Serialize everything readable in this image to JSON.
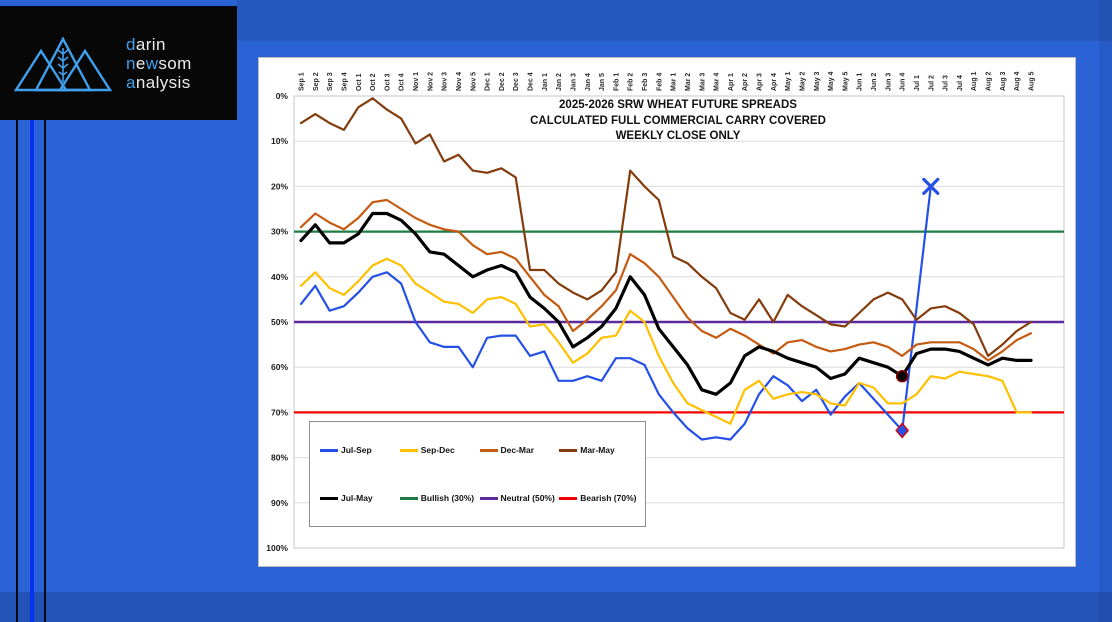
{
  "brand": {
    "l1a": "d",
    "l1b": "arin",
    "l2a": "n",
    "l2b": "e",
    "l2c": "w",
    "l2d": "som",
    "l3a": "a",
    "l3b": "nalysis",
    "accent_color": "#41A0EE"
  },
  "page_colors": {
    "background_blue": "#2B62D5",
    "stripe_bright_blue": "#0533F0",
    "stripe_black": "#06080c",
    "logo_background": "#070707",
    "card_background": "#ffffff"
  },
  "chart_data": {
    "type": "line",
    "title_lines": [
      "2025-2026 SRW WHEAT FUTURE SPREADS",
      "CALCULATED FULL COMMERCIAL CARRY COVERED",
      "WEEKLY CLOSE ONLY"
    ],
    "y_axis": {
      "min": 0,
      "max": 100,
      "inverted": true,
      "tick_step": 10,
      "ticks": [
        "0%",
        "10%",
        "20%",
        "30%",
        "40%",
        "50%",
        "60%",
        "70%",
        "80%",
        "90%",
        "100%"
      ]
    },
    "grid": true,
    "legend_position": "inside-bottom-left",
    "categories": [
      "Sep 1",
      "Sep 2",
      "Sep 3",
      "Sep 4",
      "Oct 1",
      "Oct 2",
      "Oct 3",
      "Oct 4",
      "Nov 1",
      "Nov 2",
      "Nov 3",
      "Nov 4",
      "Nov 5",
      "Dec 1",
      "Dec 2",
      "Dec 3",
      "Dec 4",
      "Jan 1",
      "Jan 2",
      "Jan 3",
      "Jan 4",
      "Jan 5",
      "Feb 1",
      "Feb 2",
      "Feb 3",
      "Feb 4",
      "Mar 1",
      "Mar 2",
      "Mar 3",
      "Mar 4",
      "Apr 1",
      "Apr 2",
      "Apr 3",
      "Apr 4",
      "May 1",
      "May 2",
      "May 3",
      "May 4",
      "May 5",
      "Jun 1",
      "Jun 2",
      "Jun 3",
      "Jun 4",
      "Jul 1",
      "Jul 2",
      "Jul 3",
      "Jul 4",
      "Aug 1",
      "Aug 2",
      "Aug 3",
      "Aug 4",
      "Aug 5"
    ],
    "unit": "percent",
    "series": [
      {
        "name": "Jul-Sep",
        "color": "#2450E8",
        "width": 2.2,
        "values": [
          46,
          42,
          47.5,
          46.5,
          43.5,
          40,
          39,
          41.5,
          50,
          54.5,
          55.5,
          55.5,
          60,
          53.5,
          53,
          53,
          57.5,
          56.5,
          63,
          63,
          62,
          63,
          58,
          58,
          59.5,
          66,
          70,
          73.5,
          76,
          75.5,
          76,
          72.5,
          66,
          62,
          64,
          67.5,
          65,
          70.5,
          66.5,
          63.5,
          67,
          70.5,
          74,
          47,
          20,
          null,
          null,
          null,
          null,
          null,
          null,
          null
        ]
      },
      {
        "name": "Sep-Dec",
        "color": "#FFC000",
        "width": 2.2,
        "values": [
          42,
          39,
          42.5,
          44,
          41,
          37.5,
          36,
          37.5,
          41.5,
          43.5,
          45.5,
          46,
          48,
          45,
          44.5,
          46,
          51,
          50.5,
          54.5,
          59,
          57,
          53.5,
          53,
          47.5,
          50,
          57.5,
          63.5,
          68,
          69.5,
          71,
          72.5,
          65,
          63,
          67,
          66,
          65.5,
          66,
          68,
          68.5,
          63.5,
          64.5,
          68,
          68,
          66,
          62,
          62.5,
          61,
          61.5,
          62,
          63,
          70,
          70
        ]
      },
      {
        "name": "Dec-Mar",
        "color": "#C55A11",
        "width": 2.2,
        "values": [
          29,
          26,
          28,
          29.5,
          27,
          23.5,
          23,
          25,
          27,
          28.5,
          29.5,
          30,
          33,
          35,
          34.5,
          36,
          40,
          44,
          46.5,
          52,
          49.5,
          46.5,
          43,
          35,
          37,
          40,
          44.5,
          49,
          52,
          53.5,
          51.5,
          53,
          55,
          57,
          54.5,
          54,
          55.5,
          56.5,
          56,
          55,
          54.5,
          55.5,
          57.5,
          55,
          54.5,
          54.5,
          54.5,
          56,
          58.5,
          56.5,
          54,
          52.5
        ]
      },
      {
        "name": "Mar-May",
        "color": "#843C0C",
        "width": 2.2,
        "values": [
          6,
          4,
          6,
          7.5,
          2.5,
          0.5,
          3,
          5,
          10.5,
          8.5,
          14.5,
          13,
          16.5,
          17,
          16,
          18,
          38.5,
          38.5,
          41.5,
          43.5,
          45,
          43,
          39,
          16.5,
          20,
          23,
          35.5,
          37,
          40,
          42.5,
          48,
          49.5,
          45,
          50,
          44,
          46.5,
          48.5,
          50.5,
          51,
          48,
          45,
          43.5,
          45,
          49.5,
          47,
          46.5,
          48,
          50.5,
          57.5,
          55,
          52,
          50
        ]
      },
      {
        "name": "Jul-May",
        "color": "#000000",
        "width": 3.2,
        "values": [
          32,
          28.5,
          32.5,
          32.5,
          30.5,
          26,
          26,
          27.5,
          30.5,
          34.5,
          35,
          37.5,
          40,
          38.5,
          37.5,
          39,
          44.5,
          47,
          50,
          55.5,
          53.5,
          51,
          47,
          40,
          44,
          51.5,
          55.5,
          59.5,
          65,
          66,
          63.5,
          57.5,
          55.5,
          56.5,
          58,
          59,
          60,
          62.5,
          61.5,
          58,
          59,
          60,
          62,
          57,
          56,
          56,
          56.5,
          58,
          59.5,
          58,
          58.5,
          58.5
        ]
      }
    ],
    "reference_lines": [
      {
        "name": "Bullish (30%)",
        "value": 30,
        "color": "#1E7C45",
        "width": 2.2
      },
      {
        "name": "Neutral (50%)",
        "value": 50,
        "color": "#5B2B9E",
        "width": 2.6
      },
      {
        "name": "Bearish (70%)",
        "value": 70,
        "color": "#F40000",
        "width": 2.2
      }
    ],
    "markers": [
      {
        "shape": "circle",
        "category": "Jun 4",
        "value": 62,
        "fill": "#000000",
        "outline": "#8B0000"
      },
      {
        "shape": "diamond",
        "category": "Jun 4",
        "value": 74,
        "fill": "#2450E8",
        "outline": "#E00000"
      },
      {
        "shape": "x",
        "category": "Jul 2",
        "value": 20,
        "fill": "#2450E8"
      }
    ],
    "legend_rows": [
      [
        {
          "label": "Jul-Sep",
          "color": "#2450E8"
        },
        {
          "label": "Sep-Dec",
          "color": "#FFC000"
        },
        {
          "label": "Dec-Mar",
          "color": "#C55A11"
        },
        {
          "label": "Mar-May",
          "color": "#843C0C"
        }
      ],
      [
        {
          "label": "Jul-May",
          "color": "#000000"
        },
        {
          "label": "Bullish (30%)",
          "color": "#1E7C45"
        },
        {
          "label": "Neutral (50%)",
          "color": "#5B2B9E"
        },
        {
          "label": "Bearish (70%)",
          "color": "#F40000"
        }
      ]
    ]
  }
}
